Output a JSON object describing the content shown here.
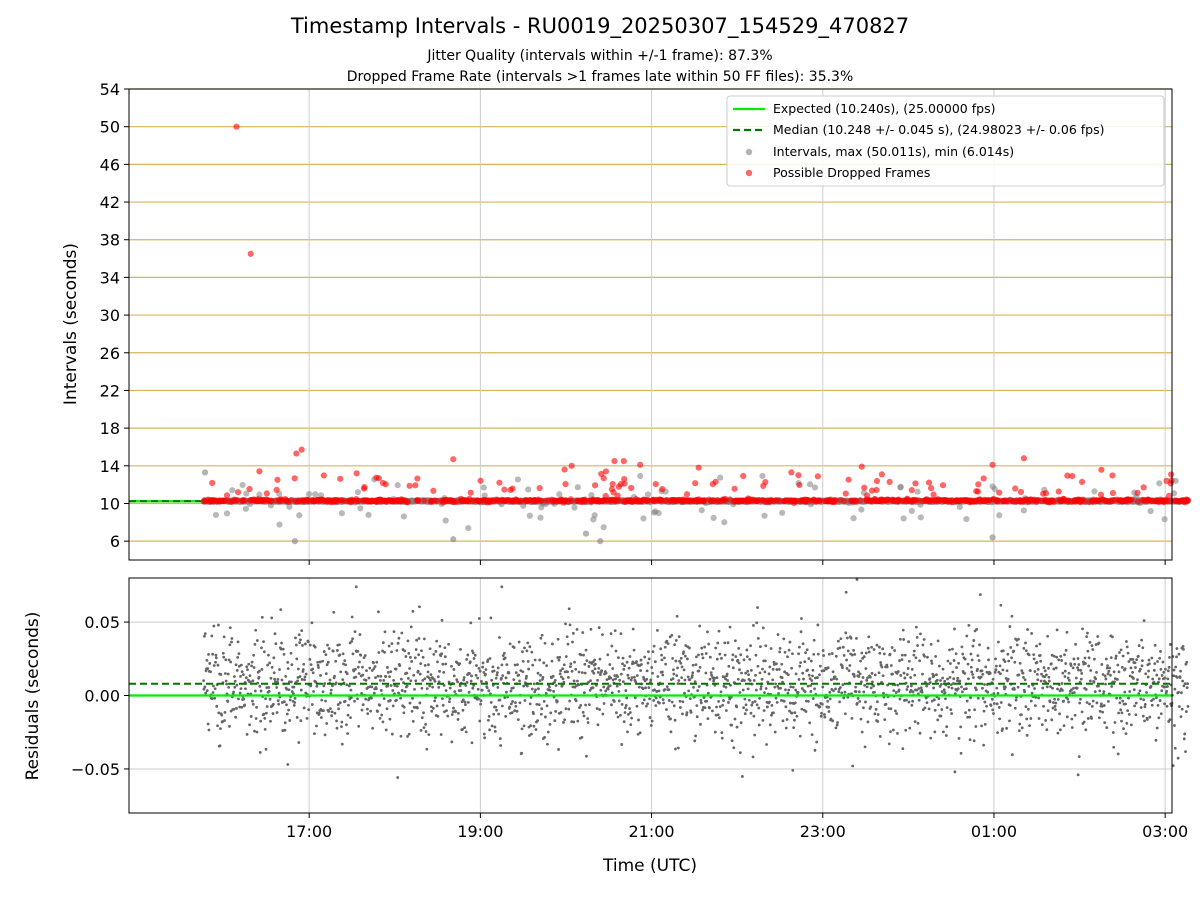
{
  "figure": {
    "title": "Timestamp Intervals - RU0019_20250307_154529_470827",
    "subtitle_1": "Jitter Quality (intervals within +/-1 frame): 87.3%",
    "subtitle_2": "Dropped Frame Rate (intervals >1 frames late within 50 FF files): 35.3%"
  },
  "colors": {
    "expected": "#00ee00",
    "median": "#007700",
    "intervals": "#808080",
    "dropped": "#ff0000",
    "hgrid": "#d9b55a",
    "vgrid": "#cccccc"
  },
  "chart_data": [
    {
      "type": "scatter",
      "name": "intervals",
      "xlabel": "",
      "ylabel": "Intervals (seconds)",
      "ylim": [
        4,
        54
      ],
      "yticks": [
        6,
        10,
        14,
        18,
        22,
        26,
        30,
        34,
        38,
        42,
        46,
        50,
        54
      ],
      "grid": "horizontal gold lines at y ticks; vertical grey lines at x ticks",
      "legend_position": "top-right",
      "legend": [
        "Expected (10.240s), (25.00000 fps)",
        "Median (10.248 +/- 0.045 s), (24.98023 +/- 0.06 fps)",
        "Intervals, max (50.011s), min (6.014s)",
        "Possible Dropped Frames"
      ],
      "expected_interval": 10.24,
      "median_interval": 10.248,
      "max_interval": 50.011,
      "min_interval": 6.014,
      "dropped_outliers": [
        {
          "x": "16:09",
          "y": 50.0
        },
        {
          "x": "16:19",
          "y": 36.5
        },
        {
          "x": "16:51",
          "y": 15.3
        },
        {
          "x": "18:41",
          "y": 14.7
        },
        {
          "x": "19:59",
          "y": 13.6
        },
        {
          "x": "20:04",
          "y": 14.0
        },
        {
          "x": "20:28",
          "y": 13.4
        },
        {
          "x": "20:34",
          "y": 14.5
        },
        {
          "x": "20:52",
          "y": 14.1
        },
        {
          "x": "21:33",
          "y": 13.8
        },
        {
          "x": "22:38",
          "y": 13.3
        },
        {
          "x": "22:43",
          "y": 13.0
        },
        {
          "x": "00:59",
          "y": 14.1
        },
        {
          "x": "01:21",
          "y": 14.8
        },
        {
          "x": "03:01",
          "y": 12.4
        }
      ],
      "gray_extremes": [
        {
          "x": "16:50",
          "y": 6.0
        },
        {
          "x": "18:41",
          "y": 6.2
        },
        {
          "x": "20:14",
          "y": 6.8
        },
        {
          "x": "20:24",
          "y": 6.0
        },
        {
          "x": "00:59",
          "y": 6.4
        },
        {
          "x": "15:47",
          "y": 13.3
        }
      ],
      "x_span_utc": [
        "15:46",
        "03:16"
      ],
      "gaps_utc": []
    },
    {
      "type": "scatter",
      "name": "residuals",
      "xlabel": "Time (UTC)",
      "ylabel": "Residuals (seconds)",
      "ylim": [
        -0.08,
        0.08
      ],
      "yticks": [
        -0.05,
        0.0,
        0.05
      ],
      "ytick_labels": [
        "−0.05",
        "0.00",
        "0.05"
      ],
      "xticks": [
        "17:00",
        "19:00",
        "21:00",
        "23:00",
        "01:00",
        "03:00"
      ],
      "grid": "grey lines at x and y ticks",
      "expected_residual": 0.0,
      "median_residual": 0.008,
      "residual_sigma": 0.018,
      "residual_extremes": [
        {
          "x": "17:33",
          "y": 0.074
        },
        {
          "x": "19:15",
          "y": 0.074
        },
        {
          "x": "16:45",
          "y": -0.047
        },
        {
          "x": "22:39",
          "y": -0.051
        },
        {
          "x": "23:21",
          "y": -0.048
        },
        {
          "x": "01:59",
          "y": -0.054
        },
        {
          "x": "23:24",
          "y": 0.079
        }
      ]
    }
  ]
}
